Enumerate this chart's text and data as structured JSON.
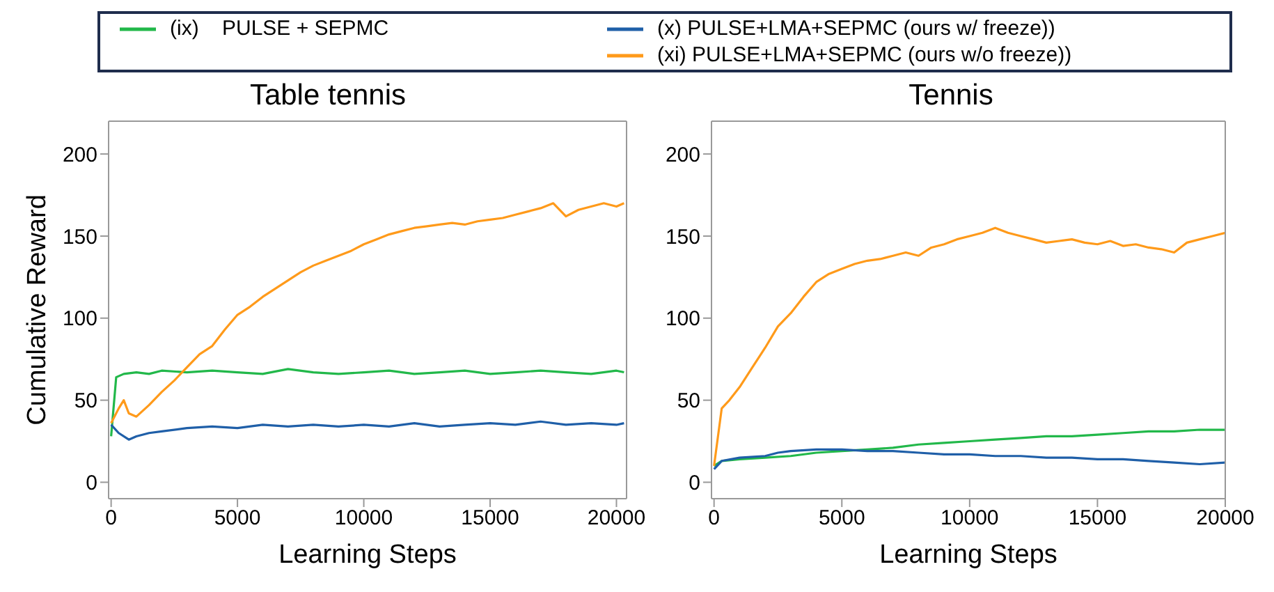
{
  "chart_data": [
    {
      "type": "line",
      "title": "Table tennis",
      "xlabel": "Learning Steps",
      "ylabel": "Cumulative Reward",
      "xlim": [
        -100,
        20400
      ],
      "xticks": [
        0,
        5000,
        10000,
        15000,
        20000
      ],
      "ylim": [
        -10,
        220
      ],
      "yticks": [
        0,
        50,
        100,
        150,
        200
      ],
      "legend": "top",
      "marker": "none",
      "line_style": "solid",
      "series": [
        {
          "name": "(ix)    PULSE + SEPMC",
          "color": "#22b84a",
          "x": [
            0,
            200,
            500,
            1000,
            1500,
            2000,
            3000,
            4000,
            5000,
            6000,
            7000,
            8000,
            9000,
            10000,
            11000,
            12000,
            13000,
            14000,
            15000,
            16000,
            17000,
            18000,
            19000,
            20000,
            20300
          ],
          "values": [
            28,
            64,
            66,
            67,
            66,
            68,
            67,
            68,
            67,
            66,
            69,
            67,
            66,
            67,
            68,
            66,
            67,
            68,
            66,
            67,
            68,
            67,
            66,
            68,
            67
          ]
        },
        {
          "name": "(x) PULSE+LMA+SEPMC (ours w/ freeze))",
          "color": "#1f5fa8",
          "x": [
            0,
            300,
            700,
            1000,
            1500,
            2000,
            3000,
            4000,
            5000,
            6000,
            7000,
            8000,
            9000,
            10000,
            11000,
            12000,
            13000,
            14000,
            15000,
            16000,
            17000,
            18000,
            19000,
            20000,
            20300
          ],
          "values": [
            35,
            30,
            26,
            28,
            30,
            31,
            33,
            34,
            33,
            35,
            34,
            35,
            34,
            35,
            34,
            36,
            34,
            35,
            36,
            35,
            37,
            35,
            36,
            35,
            36
          ]
        },
        {
          "name": "(xi) PULSE+LMA+SEPMC (ours w/o freeze))",
          "color": "#ff9a1a",
          "x": [
            0,
            300,
            500,
            700,
            1000,
            1500,
            2000,
            2500,
            3000,
            3500,
            4000,
            4500,
            5000,
            5500,
            6000,
            6500,
            7000,
            7500,
            8000,
            8500,
            9000,
            9500,
            10000,
            10500,
            11000,
            11500,
            12000,
            12500,
            13000,
            13500,
            14000,
            14500,
            15000,
            15500,
            16000,
            16500,
            17000,
            17500,
            18000,
            18500,
            19000,
            19500,
            20000,
            20300
          ],
          "values": [
            36,
            45,
            50,
            42,
            40,
            47,
            55,
            62,
            70,
            78,
            83,
            93,
            102,
            107,
            113,
            118,
            123,
            128,
            132,
            135,
            138,
            141,
            145,
            148,
            151,
            153,
            155,
            156,
            157,
            158,
            157,
            159,
            160,
            161,
            163,
            165,
            167,
            170,
            162,
            166,
            168,
            170,
            168,
            170
          ]
        }
      ]
    },
    {
      "type": "line",
      "title": "Tennis",
      "xlabel": "Learning Steps",
      "xlim": [
        -100,
        20000
      ],
      "xticks": [
        0,
        5000,
        10000,
        15000,
        20000
      ],
      "ylim": [
        -10,
        220
      ],
      "yticks": [
        0,
        50,
        100,
        150,
        200
      ],
      "marker": "none",
      "line_style": "solid",
      "series": [
        {
          "color": "#22b84a",
          "x": [
            0,
            300,
            1000,
            2000,
            3000,
            4000,
            5000,
            6000,
            7000,
            8000,
            9000,
            10000,
            11000,
            12000,
            13000,
            14000,
            15000,
            16000,
            17000,
            18000,
            19000,
            20000
          ],
          "values": [
            10,
            13,
            14,
            15,
            16,
            18,
            19,
            20,
            21,
            23,
            24,
            25,
            26,
            27,
            28,
            28,
            29,
            30,
            31,
            31,
            32,
            32
          ]
        },
        {
          "color": "#1f5fa8",
          "x": [
            0,
            300,
            1000,
            2000,
            2500,
            3000,
            4000,
            5000,
            6000,
            7000,
            8000,
            9000,
            10000,
            11000,
            12000,
            13000,
            14000,
            15000,
            16000,
            17000,
            18000,
            19000,
            20000
          ],
          "values": [
            8,
            13,
            15,
            16,
            18,
            19,
            20,
            20,
            19,
            19,
            18,
            17,
            17,
            16,
            16,
            15,
            15,
            14,
            14,
            13,
            12,
            11,
            12
          ]
        },
        {
          "color": "#ff9a1a",
          "x": [
            0,
            300,
            600,
            1000,
            1500,
            2000,
            2500,
            3000,
            3500,
            4000,
            4500,
            5000,
            5500,
            6000,
            6500,
            7000,
            7500,
            8000,
            8500,
            9000,
            9500,
            10000,
            10500,
            11000,
            11500,
            12000,
            12500,
            13000,
            13500,
            14000,
            14500,
            15000,
            15500,
            16000,
            16500,
            17000,
            17500,
            18000,
            18500,
            19000,
            19500,
            20000
          ],
          "values": [
            10,
            45,
            50,
            58,
            70,
            82,
            95,
            103,
            113,
            122,
            127,
            130,
            133,
            135,
            136,
            138,
            140,
            138,
            143,
            145,
            148,
            150,
            152,
            155,
            152,
            150,
            148,
            146,
            147,
            148,
            146,
            145,
            147,
            144,
            145,
            143,
            142,
            140,
            146,
            148,
            150,
            152
          ]
        }
      ]
    }
  ]
}
